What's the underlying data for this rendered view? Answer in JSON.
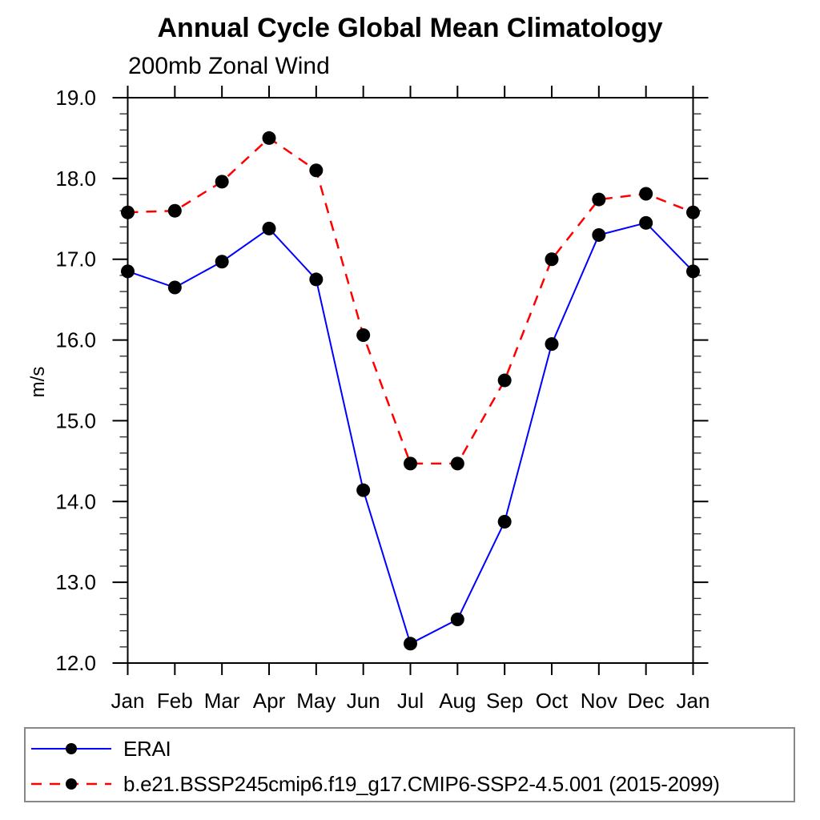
{
  "chart_data": {
    "type": "line",
    "title": "Annual Cycle Global Mean Climatology",
    "subtitle": "200mb Zonal Wind",
    "ylabel": "m/s",
    "xlabel": "",
    "categories": [
      "Jan",
      "Feb",
      "Mar",
      "Apr",
      "May",
      "Jun",
      "Jul",
      "Aug",
      "Sep",
      "Oct",
      "Nov",
      "Dec",
      "Jan"
    ],
    "ylim": [
      12.0,
      19.0
    ],
    "ytick_step": 1.0,
    "ytick_minor_step": 0.2,
    "ytick_labels": [
      "12.0",
      "13.0",
      "14.0",
      "15.0",
      "16.0",
      "17.0",
      "18.0",
      "19.0"
    ],
    "grid": false,
    "legend_position": "bottom-left-box",
    "series": [
      {
        "name": "ERAI",
        "color": "#0000ff",
        "line_style": "solid",
        "marker": "circle",
        "marker_color": "#000000",
        "values": [
          16.85,
          16.65,
          16.97,
          17.38,
          16.75,
          14.14,
          12.24,
          12.54,
          13.75,
          15.95,
          17.3,
          17.45,
          16.85
        ]
      },
      {
        "name": "b.e21.BSSP245cmip6.f19_g17.CMIP6-SSP2-4.5.001 (2015-2099)",
        "color": "#ff0000",
        "line_style": "dashed",
        "marker": "circle",
        "marker_color": "#000000",
        "values": [
          17.58,
          17.6,
          17.96,
          18.5,
          18.1,
          16.06,
          14.47,
          14.47,
          15.5,
          17.0,
          17.74,
          17.81,
          17.58
        ]
      }
    ]
  },
  "colors": {
    "background": "#ffffff",
    "frame": "#000000",
    "major_tick": "#000000",
    "minor_tick": "#333333",
    "text": "#000000",
    "legend_border": "#888888"
  }
}
